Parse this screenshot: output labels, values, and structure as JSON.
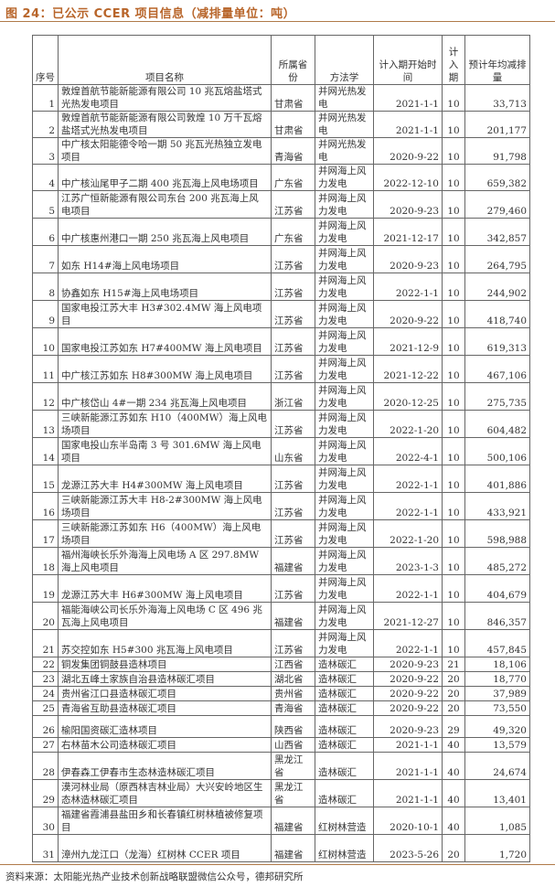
{
  "title": "图 24：已公示 CCER 项目信息（减排量单位：吨）",
  "headers": [
    "序号",
    "项目名称",
    "所属省份",
    "方法学",
    "计入期开始时间",
    "计入期",
    "预计年均减排量"
  ],
  "rows": [
    [
      "1",
      "敦煌首航节能新能源有限公司 10 兆瓦熔盐塔式光热发电项目",
      "甘肃省",
      "并网光热发电",
      "2021-1-1",
      "10",
      "33,713"
    ],
    [
      "2",
      "敦煌首航节能新能源有限公司敦煌 10 万千瓦熔盐塔式光热发电项目",
      "甘肃省",
      "并网光热发电",
      "2021-1-1",
      "10",
      "201,177"
    ],
    [
      "3",
      "中广核太阳能德令哈一期 50 兆瓦光热独立发电项目",
      "青海省",
      "并网光热发电",
      "2020-9-22",
      "10",
      "91,798"
    ],
    [
      "4",
      "中广核汕尾甲子二期 400 兆瓦海上风电场项目",
      "广东省",
      "并网海上风力发电",
      "2022-12-10",
      "10",
      "659,382"
    ],
    [
      "5",
      "江苏广恒新能源有限公司东台 200 兆瓦海上风电项目",
      "江苏省",
      "并网海上风力发电",
      "2020-9-23",
      "10",
      "279,460"
    ],
    [
      "6",
      "中广核惠州港口一期 250 兆瓦海上风电项目",
      "广东省",
      "并网海上风力发电",
      "2021-12-17",
      "10",
      "342,857"
    ],
    [
      "7",
      "如东 H14#海上风电场项目",
      "江苏省",
      "并网海上风力发电",
      "2020-9-23",
      "10",
      "264,795"
    ],
    [
      "8",
      "协鑫如东 H15#海上风电场项目",
      "江苏省",
      "并网海上风力发电",
      "2022-1-1",
      "10",
      "244,902"
    ],
    [
      "9",
      "国家电投江苏大丰 H3#302.4MW 海上风电项目",
      "江苏省",
      "并网海上风力发电",
      "2020-9-22",
      "10",
      "418,740"
    ],
    [
      "10",
      "国家电投江苏如东 H7#400MW 海上风电项目",
      "江苏省",
      "并网海上风力发电",
      "2021-12-9",
      "10",
      "619,313"
    ],
    [
      "11",
      "中广核江苏如东 H8#300MW 海上风电项目",
      "江苏省",
      "并网海上风力发电",
      "2021-12-22",
      "10",
      "467,106"
    ],
    [
      "12",
      "中广核岱山 4#一期 234 兆瓦海上风电项目",
      "浙江省",
      "并网海上风力发电",
      "2020-12-25",
      "10",
      "275,735"
    ],
    [
      "13",
      "三峡新能源江苏如东 H10（400MW）海上风电场项目",
      "江苏省",
      "并网海上风力发电",
      "2022-1-20",
      "10",
      "604,482"
    ],
    [
      "14",
      "国家电投山东半岛南 3 号 301.6MW 海上风电项目",
      "山东省",
      "并网海上风力发电",
      "2022-4-1",
      "10",
      "500,106"
    ],
    [
      "15",
      "龙源江苏大丰 H4#300MW 海上风电项目",
      "江苏省",
      "并网海上风力发电",
      "2022-1-1",
      "10",
      "401,886"
    ],
    [
      "16",
      "三峡新能源江苏大丰 H8-2#300MW 海上风电场项目",
      "江苏省",
      "并网海上风力发电",
      "2022-1-1",
      "10",
      "433,921"
    ],
    [
      "17",
      "三峡新能源江苏如东 H6（400MW）海上风电场项目",
      "江苏省",
      "并网海上风力发电",
      "2022-1-20",
      "10",
      "598,988"
    ],
    [
      "18",
      "福州海峡长乐外海海上风电场 A 区 297.8MW 海上风电项目",
      "福建省",
      "并网海上风力发电",
      "2023-1-3",
      "10",
      "485,272"
    ],
    [
      "19",
      "龙源江苏大丰 H6#300MW 海上风电项目",
      "江苏省",
      "并网海上风力发电",
      "2022-1-1",
      "10",
      "404,679"
    ],
    [
      "20",
      "福能海峡公司长乐外海海上风电场 C 区 496 兆瓦海上风电项目",
      "福建省",
      "并网海上风力发电",
      "2021-12-27",
      "10",
      "846,357"
    ],
    [
      "21",
      "苏交控如东 H5#300 兆瓦海上风电项目",
      "江苏省",
      "并网海上风力发电",
      "2022-1-1",
      "10",
      "457,845"
    ],
    [
      "22",
      "铜发集团铜鼓县造林项目",
      "江西省",
      "造林碳汇",
      "2020-9-23",
      "21",
      "18,106"
    ],
    [
      "23",
      "湖北五峰土家族自治县造林碳汇项目",
      "湖北省",
      "造林碳汇",
      "2020-9-22",
      "20",
      "18,770"
    ],
    [
      "24",
      "贵州省江口县造林碳汇项目",
      "贵州省",
      "造林碳汇",
      "2020-9-22",
      "20",
      "37,989"
    ],
    [
      "25",
      "青海省互助县造林碳汇项目",
      "青海省",
      "造林碳汇",
      "2020-9-22",
      "20",
      "73,550"
    ],
    [
      "26",
      "榆阳国资碳汇造林项目",
      "陕西省",
      "造林碳汇",
      "2020-9-23",
      "29",
      "49,320"
    ],
    [
      "27",
      "右林苗木公司造林碳汇项目",
      "山西省",
      "造林碳汇",
      "2021-1-1",
      "40",
      "13,579"
    ],
    [
      "28",
      "伊春森工伊春市生态林造林碳汇项目",
      "黑龙江省",
      "造林碳汇",
      "2021-1-1",
      "40",
      "24,674"
    ],
    [
      "29",
      "漠河林业局（原西林吉林业局）大兴安岭地区生态林造林碳汇项目",
      "黑龙江省",
      "造林碳汇",
      "2021-1-1",
      "40",
      "13,401"
    ],
    [
      "30",
      "福建省霞浦县盐田乡和长春镇红树林植被修复项目",
      "福建省",
      "红树林营造",
      "2020-10-1",
      "40",
      "1,085"
    ],
    [
      "31",
      "漳州九龙江口（龙海）红树林 CCER 项目",
      "福建省",
      "红树林营造",
      "2023-5-26",
      "20",
      "1,720"
    ]
  ],
  "source": "资料来源：太阳能光热产业技术创新战略联盟微信公众号，德邦研究所"
}
